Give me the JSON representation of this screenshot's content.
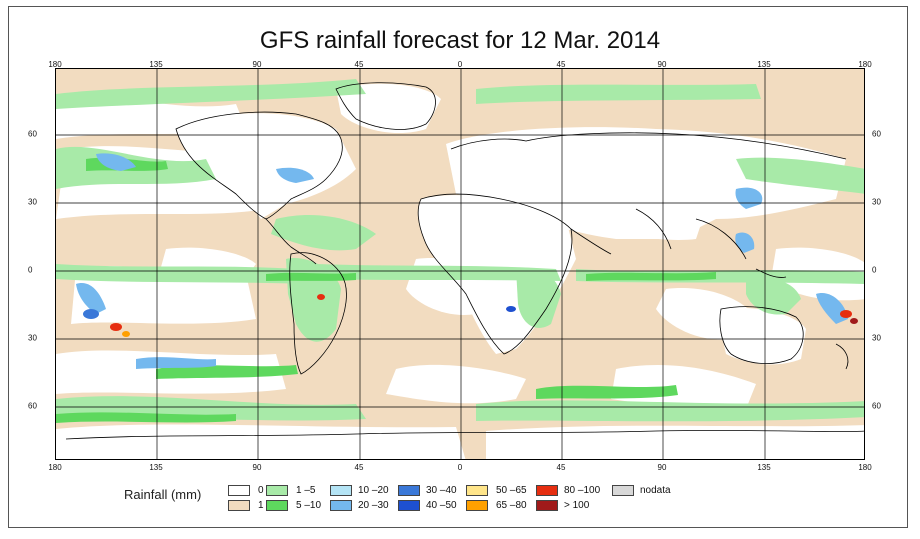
{
  "title": "GFS rainfall forecast for 12 Mar. 2014",
  "axes": {
    "lon_top": [
      "180",
      "135",
      "90",
      "45",
      "0",
      "45",
      "90",
      "135",
      "180"
    ],
    "lon_bottom": [
      "180",
      "135",
      "90",
      "45",
      "0",
      "45",
      "90",
      "135",
      "180"
    ],
    "lat_left": [
      "60",
      "30",
      "0",
      "30",
      "60"
    ],
    "lat_right": [
      "60",
      "30",
      "0",
      "30",
      "60"
    ]
  },
  "legend": {
    "title": "Rainfall (mm)",
    "items": [
      {
        "label": "0",
        "color": "#ffffff"
      },
      {
        "label": "1",
        "color": "#f2dcc0"
      },
      {
        "label": "1 –5",
        "color": "#a8eaa8"
      },
      {
        "label": "5 –10",
        "color": "#5ed85e"
      },
      {
        "label": "10 –20",
        "color": "#b4e4f5"
      },
      {
        "label": "20 –30",
        "color": "#74b8ee"
      },
      {
        "label": "30 –40",
        "color": "#3a78d8"
      },
      {
        "label": "40 –50",
        "color": "#1e50d0"
      },
      {
        "label": "50 –65",
        "color": "#ffe58a"
      },
      {
        "label": "65 –80",
        "color": "#ffa000"
      },
      {
        "label": "80 –100",
        "color": "#e62e10"
      },
      {
        "label": "> 100",
        "color": "#a01a1a"
      },
      {
        "label": "nodata",
        "color": "#d8d8d8"
      }
    ]
  }
}
